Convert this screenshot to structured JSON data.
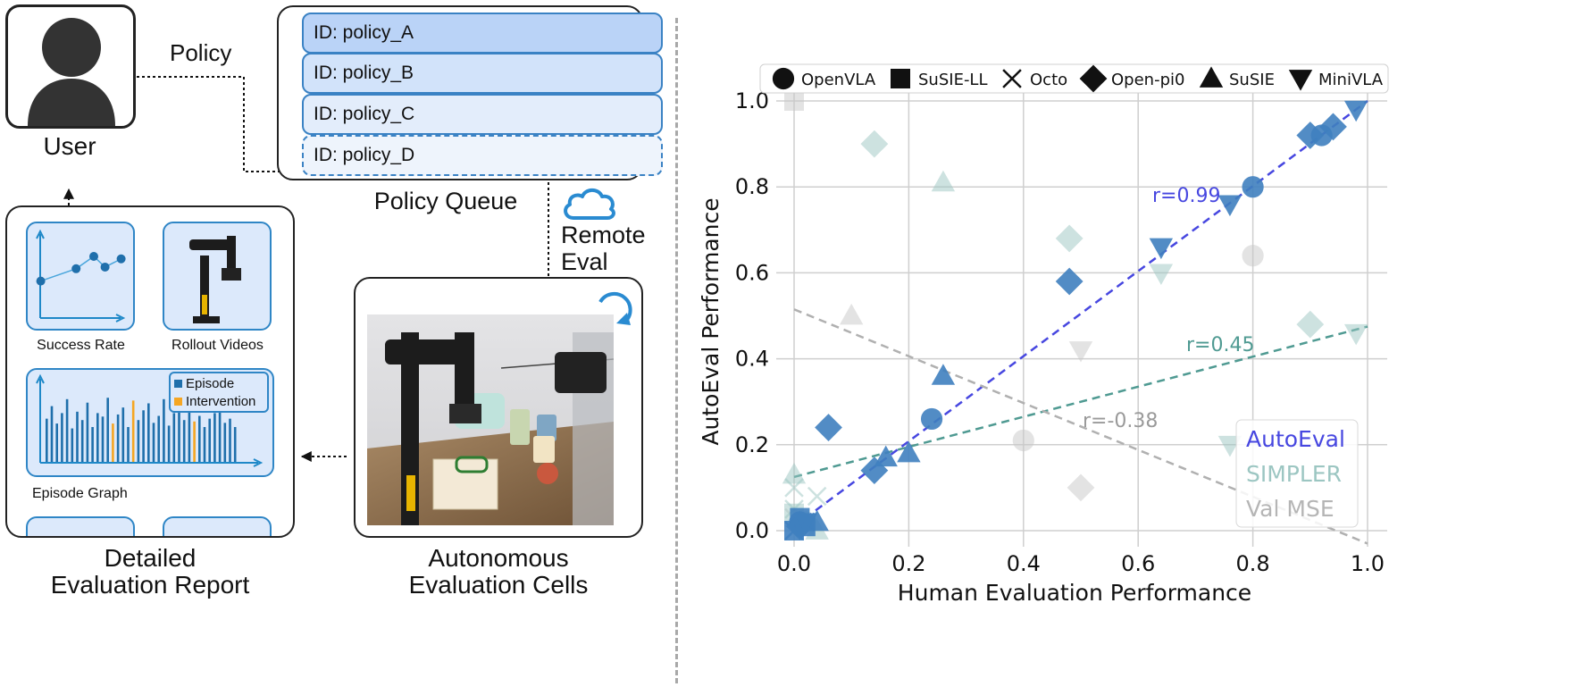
{
  "user": {
    "label": "User",
    "arrow_label": "Policy"
  },
  "policy_queue": {
    "title": "Policy Queue",
    "items": [
      "ID: policy_A",
      "ID: policy_B",
      "ID: policy_C",
      "ID: policy_D"
    ],
    "fills": [
      "#bad3f7",
      "#d2e3fa",
      "#e3edfb",
      "#eef4fc"
    ]
  },
  "remote_eval": {
    "line1": "Remote",
    "line2": "Eval"
  },
  "cells": {
    "title_line1": "Autonomous",
    "title_line2": "Evaluation Cells"
  },
  "report": {
    "title_line1": "Detailed",
    "title_line2": "Evaluation Report",
    "success_caption": "Success Rate",
    "rollout_caption": "Rollout Videos",
    "episode_caption": "Episode Graph",
    "legend": [
      "Episode",
      "Intervention"
    ],
    "episode_color": "#1f6fab",
    "intervention_color": "#f5a623",
    "success_values": [
      0.45,
      0.6,
      0.75,
      0.62,
      0.72
    ],
    "episode_bars": [
      0.62,
      0.8,
      0.55,
      0.7,
      0.9,
      0.48,
      0.72,
      0.6,
      0.85,
      0.5,
      0.7,
      0.65,
      0.92,
      0.55,
      0.68,
      0.78,
      0.5,
      0.88,
      0.6,
      0.74,
      0.84,
      0.56,
      0.66,
      0.9,
      0.52,
      0.7,
      0.8,
      0.6,
      0.72,
      0.58,
      0.66,
      0.5,
      0.62,
      0.7,
      0.8,
      0.56,
      0.62,
      0.5
    ],
    "intervention_idx": [
      13,
      17,
      29
    ]
  },
  "chart_data": {
    "type": "scatter",
    "xlabel": "Human Evaluation Performance",
    "ylabel": "AutoEval Performance",
    "xlim": [
      0,
      1
    ],
    "ylim": [
      0,
      1
    ],
    "xticks": [
      "0.0",
      "0.2",
      "0.4",
      "0.6",
      "0.8",
      "1.0"
    ],
    "yticks": [
      "0.0",
      "0.2",
      "0.4",
      "0.6",
      "0.8",
      "1.0"
    ],
    "grid": true,
    "marker_legend": [
      "OpenVLA",
      "SuSIE-LL",
      "Octo",
      "Open-pi0",
      "SuSIE",
      "MiniVLA"
    ],
    "marker_shapes": [
      "circle",
      "square",
      "x",
      "diamond",
      "triangle-up",
      "triangle-down"
    ],
    "method_legend_position": "bottom-right",
    "series": [
      {
        "name": "AutoEval",
        "color": "#3f7fbf",
        "fit_color": "#4747e0",
        "r_label": "r=0.99",
        "fit": [
          [
            0,
            0.01
          ],
          [
            1,
            1.0
          ]
        ],
        "points": [
          [
            "circle",
            0.24,
            0.26
          ],
          [
            "circle",
            0.8,
            0.8
          ],
          [
            "circle",
            0.92,
            0.92
          ],
          [
            "circle",
            0.01,
            0.02
          ],
          [
            "square",
            0,
            0
          ],
          [
            "square",
            0.02,
            0.01
          ],
          [
            "square",
            0.01,
            0.03
          ],
          [
            "x",
            0,
            0
          ],
          [
            "x",
            0.02,
            0.02
          ],
          [
            "diamond",
            0.06,
            0.24
          ],
          [
            "diamond",
            0.48,
            0.58
          ],
          [
            "diamond",
            0.9,
            0.92
          ],
          [
            "diamond",
            0.94,
            0.94
          ],
          [
            "diamond",
            0.14,
            0.14
          ],
          [
            "diamond",
            0.01,
            0.01
          ],
          [
            "triangle-up",
            0.16,
            0.17
          ],
          [
            "triangle-up",
            0.2,
            0.18
          ],
          [
            "triangle-up",
            0.26,
            0.36
          ],
          [
            "triangle-up",
            0.04,
            0.02
          ],
          [
            "triangle-down",
            0.64,
            0.66
          ],
          [
            "triangle-down",
            0.76,
            0.76
          ],
          [
            "triangle-down",
            0.98,
            0.98
          ],
          [
            "triangle-down",
            0.02,
            0.02
          ]
        ]
      },
      {
        "name": "SIMPLER",
        "color": "#9cc6c2",
        "fit_color": "#4f9a92",
        "r_label": "r=0.45",
        "fit": [
          [
            0,
            0.125
          ],
          [
            1,
            0.475
          ]
        ],
        "points": [
          [
            "diamond",
            0.14,
            0.9
          ],
          [
            "triangle-up",
            0.26,
            0.81
          ],
          [
            "diamond",
            0.48,
            0.68
          ],
          [
            "triangle-down",
            0.64,
            0.6
          ],
          [
            "diamond",
            0.9,
            0.48
          ],
          [
            "triangle-down",
            0.98,
            0.46
          ],
          [
            "triangle-down",
            0.76,
            0.2
          ],
          [
            "x",
            0,
            0.1
          ],
          [
            "x",
            0.04,
            0.08
          ],
          [
            "triangle-up",
            0,
            0.13
          ],
          [
            "square",
            0,
            0.04
          ],
          [
            "circle",
            0.02,
            0.02
          ],
          [
            "triangle-up",
            0.04,
            0.0
          ],
          [
            "x",
            0,
            0.05
          ]
        ]
      },
      {
        "name": "Val MSE",
        "color": "#c8c8c8",
        "fit_color": "#b0b0b0",
        "r_label": "r=-0.38",
        "fit": [
          [
            0,
            0.515
          ],
          [
            1,
            -0.03
          ]
        ],
        "points": [
          [
            "square",
            0,
            1.0
          ],
          [
            "triangle-up",
            0.1,
            0.5
          ],
          [
            "circle",
            0.8,
            0.64
          ],
          [
            "circle",
            0.4,
            0.21
          ],
          [
            "triangle-down",
            0.5,
            0.42
          ],
          [
            "diamond",
            0.5,
            0.1
          ],
          [
            "x",
            0,
            0.03
          ]
        ]
      }
    ]
  }
}
